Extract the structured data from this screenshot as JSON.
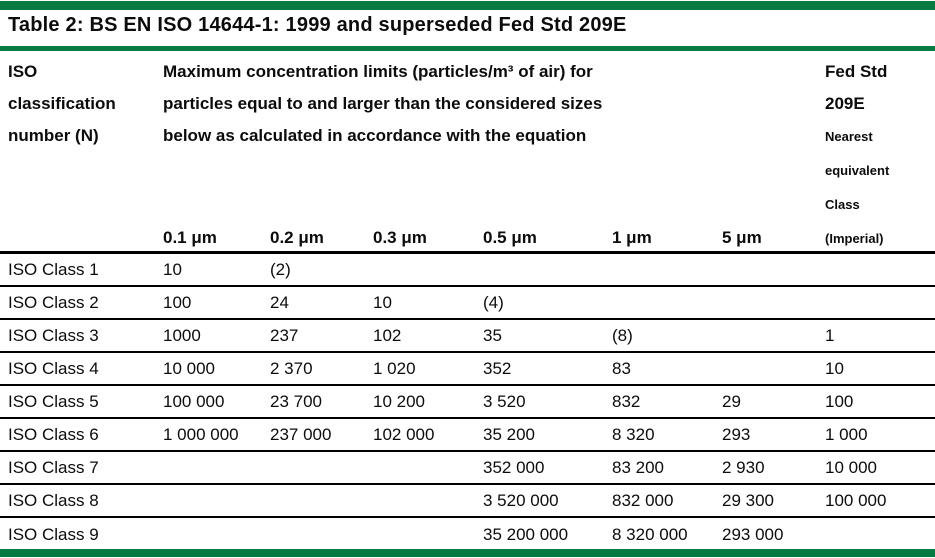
{
  "title": "Table 2: BS EN ISO 14644-1: 1999 and superseded Fed Std 209E",
  "colors": {
    "accent_green": "#077a41",
    "text": "#0c0c0c"
  },
  "header": {
    "iso_column_lines": [
      "ISO",
      "classification",
      "number (N)"
    ],
    "limits_heading_lines": [
      "Maximum concentration limits (particles/m³ of air) for",
      "particles equal to and larger than the considered sizes",
      "below as calculated in accordance with the equation"
    ],
    "fed_std_lines": [
      "Fed Std",
      "209E"
    ],
    "fed_std_sub_lines": [
      "Nearest",
      "equivalent",
      "Class",
      "(Imperial)"
    ],
    "size_columns": [
      "0.1 μm",
      "0.2 μm",
      "0.3 μm",
      "0.5 μm",
      "1 μm",
      "5 μm"
    ]
  },
  "rows": [
    {
      "label": "ISO Class 1",
      "values": [
        "10",
        "(2)",
        "",
        "",
        "",
        "",
        ""
      ]
    },
    {
      "label": "ISO Class 2",
      "values": [
        "100",
        "24",
        "10",
        "(4)",
        "",
        "",
        ""
      ]
    },
    {
      "label": "ISO Class 3",
      "values": [
        "1000",
        "237",
        "102",
        "35",
        "(8)",
        "",
        "1"
      ]
    },
    {
      "label": "ISO Class 4",
      "values": [
        "10 000",
        "2 370",
        "1 020",
        "352",
        "83",
        "",
        "10"
      ]
    },
    {
      "label": "ISO Class 5",
      "values": [
        "100 000",
        "23 700",
        "10 200",
        "3 520",
        "832",
        "29",
        "100"
      ]
    },
    {
      "label": "ISO Class 6",
      "values": [
        "1 000 000",
        "237 000",
        "102 000",
        "35 200",
        "8 320",
        "293",
        "1 000"
      ]
    },
    {
      "label": "ISO Class 7",
      "values": [
        "",
        "",
        "",
        "352 000",
        "83 200",
        "2 930",
        "10 000"
      ]
    },
    {
      "label": "ISO Class 8",
      "values": [
        "",
        "",
        "",
        "3 520 000",
        "832 000",
        "29 300",
        "100 000"
      ]
    },
    {
      "label": "ISO Class 9",
      "values": [
        "",
        "",
        "",
        "35 200 000",
        "8 320 000",
        "293 000",
        ""
      ]
    }
  ]
}
